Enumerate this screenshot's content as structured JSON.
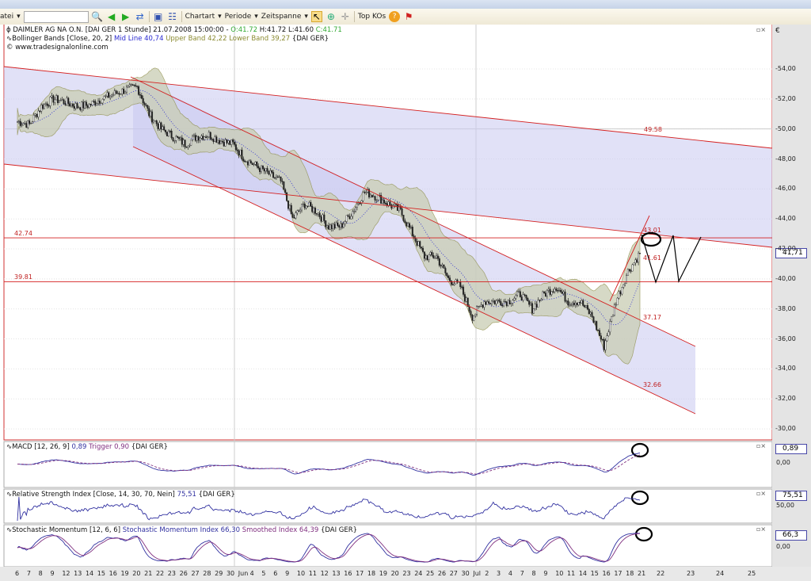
{
  "toolbar": {
    "file_menu": "atei",
    "search_value": "",
    "chartart": "Chartart",
    "periode": "Periode",
    "zeitspanne": "Zeitspanne",
    "top_kos": "Top KOs"
  },
  "main_panel": {
    "instrument": "DAIMLER AG NA O.N. [DAI GER  1 Stunde] 21.07.2008 15:00:00 -",
    "open": "O:41.72",
    "high": "H:41.72",
    "low": "L:41.60",
    "close": "C:41.71",
    "bb_label": "Bollinger Bands [Close, 20, 2]",
    "bb_mid": "Mid Line 40,74",
    "bb_upper": "Upper Band 42,22",
    "bb_lower": "Lower Band 39,27",
    "bb_suffix": "{DAI GER}",
    "copyright": "© www.tradesignalonline.com",
    "currency": "€",
    "last_price_tag": "41,71",
    "annotations": [
      "49.58",
      "42.74",
      "39.81",
      "43.01",
      "41.61",
      "37.17",
      "32.66"
    ]
  },
  "macd_panel": {
    "label": "MACD [12, 26, 9]",
    "value": "0,89",
    "trigger": "Trigger 0,90",
    "suffix": "{DAI GER}",
    "tag": "0,89",
    "axis": [
      "0,00"
    ]
  },
  "rsi_panel": {
    "label": "Relative Strength Index [Close, 14, 30, 70, Nein]",
    "value": "75,51",
    "suffix": "{DAI GER}",
    "tag": "75,51",
    "axis": [
      "50,00"
    ]
  },
  "stoch_panel": {
    "label": "Stochastic Momentum [12, 6, 6]",
    "smi": "Stochastic Momentum Index 66,30",
    "smoothed": "Smoothed Index 64,39",
    "suffix": "{DAI GER}",
    "tag": "66,3",
    "axis": [
      "0,00"
    ]
  },
  "colors": {
    "candle": "#222222",
    "bb_fill": "#c9cdb4",
    "channel_fill": "#c8c8f0",
    "line_red": "#d42020",
    "indicator_blue": "#3030a0",
    "trigger_purple": "#803080",
    "open_green": "#33aa33",
    "mid_blue": "#2a2ad0",
    "band_olive": "#8a8a30"
  },
  "chart_data": {
    "type": "candlestick",
    "interval": "1 Stunde",
    "y_axis": {
      "ticks": [
        "54,00",
        "52,00",
        "50,00",
        "48,00",
        "46,00",
        "44,00",
        "42,00",
        "40,00",
        "38,00",
        "36,00",
        "34,00",
        "32,00",
        "30,00"
      ],
      "range": [
        30,
        54
      ]
    },
    "x_tick_labels": [
      "6",
      "7",
      "8",
      "9",
      "12",
      "13",
      "14",
      "15",
      "16",
      "19",
      "20",
      "21",
      "22",
      "23",
      "26",
      "27",
      "28",
      "29",
      "30",
      "Jun",
      "4",
      "5",
      "6",
      "9",
      "10",
      "11",
      "12",
      "13",
      "16",
      "17",
      "18",
      "19",
      "20",
      "23",
      "24",
      "25",
      "26",
      "27",
      "30",
      "Jul",
      "2",
      "3",
      "4",
      "7",
      "8",
      "9",
      "10",
      "11",
      "14",
      "15",
      "16",
      "17",
      "18",
      "21",
      "22",
      "23",
      "24",
      "25"
    ],
    "daily_close_approx": [
      50.5,
      50.3,
      51.5,
      52,
      51.8,
      51.5,
      51.6,
      52,
      52.3,
      52.6,
      52.8,
      51,
      50,
      49.5,
      49,
      49.5,
      49.6,
      49.2,
      49,
      48,
      47.5,
      47,
      46.5,
      44,
      45,
      44.5,
      43.5,
      43.5,
      44.5,
      45.8,
      45.5,
      45,
      44.5,
      43,
      41.5,
      41.5,
      40,
      39.5,
      37.5,
      38.5,
      38.5,
      38.5,
      39,
      38,
      39,
      39.5,
      38.5,
      38.5,
      37.5,
      35.5,
      38.5,
      40.5,
      41.7
    ],
    "horizontal_levels": [
      42.74,
      39.81
    ],
    "channel_labels": [
      49.58,
      43.01,
      41.61,
      37.17,
      32.66
    ]
  }
}
